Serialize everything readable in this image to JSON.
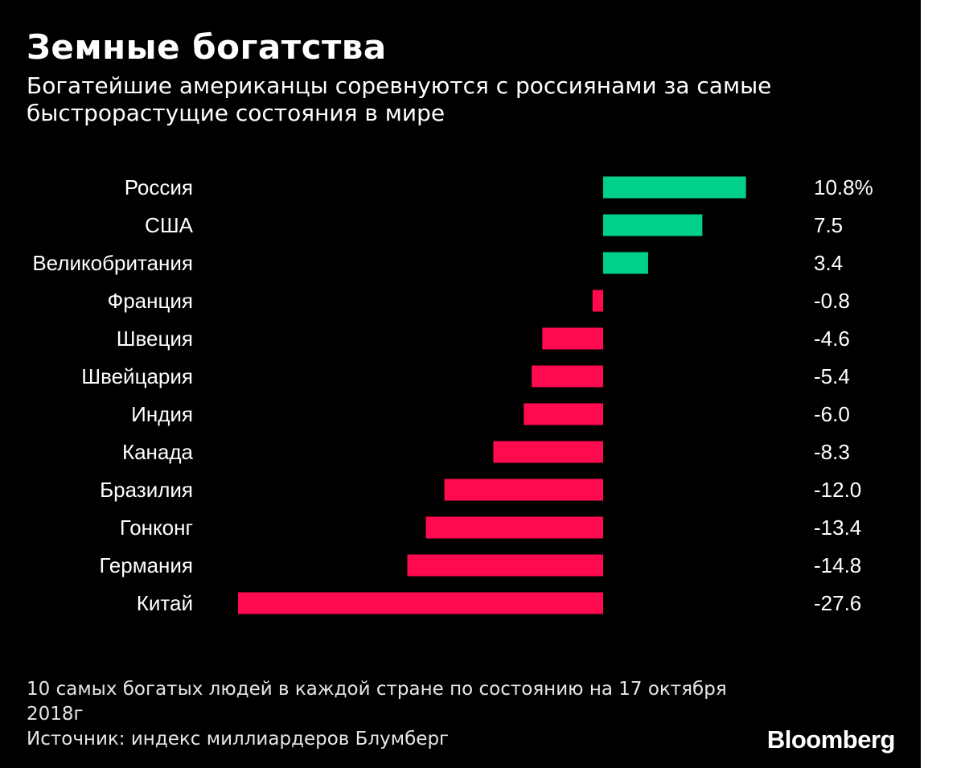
{
  "title": "Земные богатства",
  "subtitle": "Богатейшие американцы соревнуются с россиянами за самые быстрорастущие состояния в мире",
  "footnote": "10 самых богатых людей в каждой стране по состоянию на 17 октября 2018г",
  "source": "Источник: индекс миллиардеров Блумберг",
  "brand": "Bloomberg",
  "colors": {
    "background": "#000000",
    "positive": "#00d08a",
    "negative": "#ff0a4e",
    "text": "#ffffff"
  },
  "chart_data": {
    "type": "bar",
    "orientation": "horizontal",
    "categories": [
      "Россия",
      "США",
      "Великобритания",
      "Франция",
      "Швеция",
      "Швейцария",
      "Индия",
      "Канада",
      "Бразилия",
      "Гонконг",
      "Германия",
      "Китай"
    ],
    "values": [
      10.8,
      7.5,
      3.4,
      -0.8,
      -4.6,
      -5.4,
      -6.0,
      -8.3,
      -12.0,
      -13.4,
      -14.8,
      -27.6
    ],
    "value_labels": [
      "10.8%",
      "7.5",
      "3.4",
      "-0.8",
      "-4.6",
      "-5.4",
      "-6.0",
      "-8.3",
      "-12.0",
      "-13.4",
      "-14.8",
      "-27.6"
    ],
    "title": "Земные богатства",
    "xlabel": "",
    "ylabel": "",
    "xlim": [
      -27.6,
      10.8
    ],
    "grid": false,
    "legend": "none"
  }
}
